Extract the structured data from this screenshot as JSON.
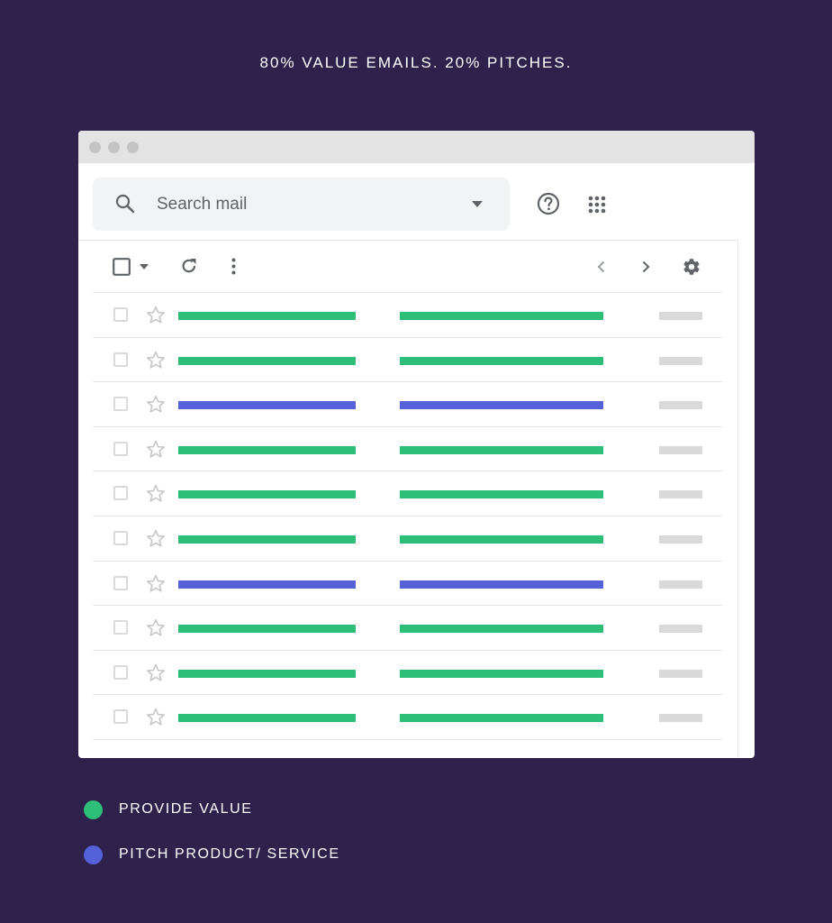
{
  "headline": "80% VALUE EMAILS. 20% PITCHES.",
  "colors": {
    "background": "#2e224d",
    "provide_value": "#2dbe78",
    "pitch": "#5561d8",
    "date_placeholder": "#d9d9d9"
  },
  "search": {
    "placeholder": "Search mail",
    "icon": "search-icon",
    "dropdown_icon": "caret-down-icon"
  },
  "header_icons": [
    "help-icon",
    "apps-grid-icon"
  ],
  "toolbar_icons": [
    "select-all-checkbox",
    "select-dropdown-icon",
    "refresh-icon",
    "more-vert-icon",
    "prev-page-icon",
    "next-page-icon",
    "settings-icon"
  ],
  "emails": [
    {
      "type": "provide_value"
    },
    {
      "type": "provide_value"
    },
    {
      "type": "pitch"
    },
    {
      "type": "provide_value"
    },
    {
      "type": "provide_value"
    },
    {
      "type": "provide_value"
    },
    {
      "type": "pitch"
    },
    {
      "type": "provide_value"
    },
    {
      "type": "provide_value"
    },
    {
      "type": "provide_value"
    }
  ],
  "legend": [
    {
      "key": "provide_value",
      "label": "PROVIDE VALUE"
    },
    {
      "key": "pitch",
      "label": "PITCH PRODUCT/ SERVICE"
    }
  ]
}
